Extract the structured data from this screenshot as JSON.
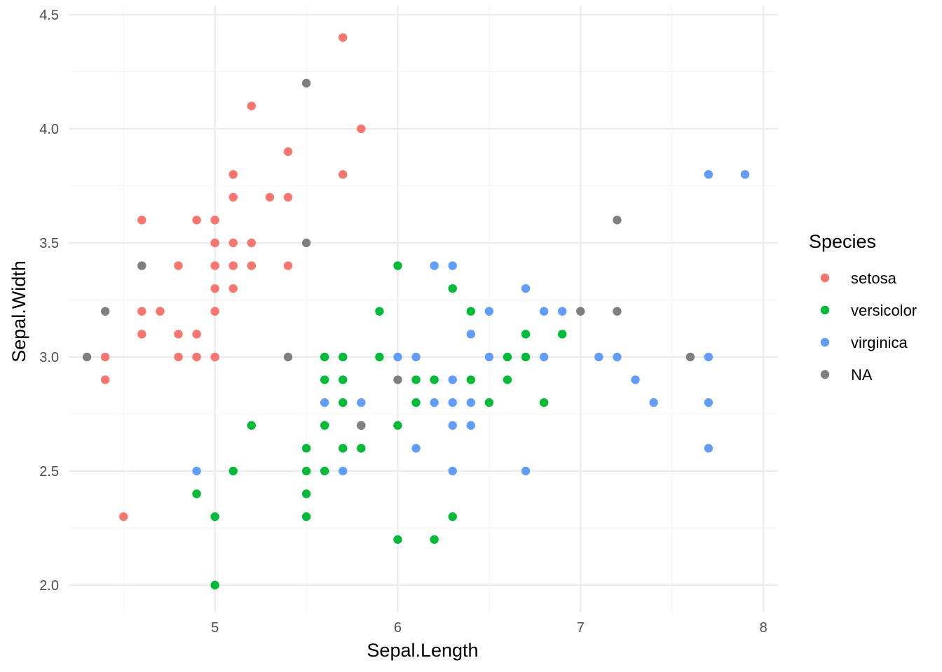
{
  "chart_data": {
    "type": "scatter",
    "xlabel": "Sepal.Length",
    "ylabel": "Sepal.Width",
    "xlim": [
      4.2,
      8.08
    ],
    "ylim": [
      1.88,
      4.54
    ],
    "x_ticks": [
      5,
      6,
      7,
      8
    ],
    "x_tick_labels": [
      "5",
      "6",
      "7",
      "8"
    ],
    "x_minor_ticks": [
      4.5,
      5.5,
      6.5,
      7.5
    ],
    "y_ticks": [
      2.0,
      2.5,
      3.0,
      3.5,
      4.0,
      4.5
    ],
    "y_tick_labels": [
      "2.0",
      "2.5",
      "3.0",
      "3.5",
      "4.0",
      "4.5"
    ],
    "y_minor_ticks": [
      2.25,
      2.75,
      3.25,
      3.75,
      4.25
    ],
    "grid": true,
    "legend": {
      "title": "Species",
      "position": "right"
    },
    "series": [
      {
        "name": "setosa",
        "color": "#F8766D",
        "points": [
          [
            5.7,
            4.4
          ],
          [
            5.2,
            4.1
          ],
          [
            5.8,
            4.0
          ],
          [
            5.4,
            3.9
          ],
          [
            5.1,
            3.8
          ],
          [
            5.7,
            3.8
          ],
          [
            5.1,
            3.7
          ],
          [
            5.3,
            3.7
          ],
          [
            5.4,
            3.7
          ],
          [
            4.6,
            3.6
          ],
          [
            4.9,
            3.6
          ],
          [
            5.0,
            3.6
          ],
          [
            5.0,
            3.5
          ],
          [
            5.1,
            3.5
          ],
          [
            5.2,
            3.5
          ],
          [
            4.8,
            3.4
          ],
          [
            5.0,
            3.4
          ],
          [
            5.1,
            3.4
          ],
          [
            5.2,
            3.4
          ],
          [
            5.4,
            3.4
          ],
          [
            5.0,
            3.3
          ],
          [
            5.1,
            3.3
          ],
          [
            4.6,
            3.2
          ],
          [
            4.7,
            3.2
          ],
          [
            5.0,
            3.2
          ],
          [
            4.6,
            3.1
          ],
          [
            4.8,
            3.1
          ],
          [
            4.9,
            3.1
          ],
          [
            4.4,
            3.0
          ],
          [
            4.8,
            3.0
          ],
          [
            4.9,
            3.0
          ],
          [
            5.0,
            3.0
          ],
          [
            4.4,
            2.9
          ],
          [
            4.5,
            2.3
          ]
        ]
      },
      {
        "name": "versicolor",
        "color": "#00BA38",
        "points": [
          [
            6.0,
            3.4
          ],
          [
            6.3,
            3.3
          ],
          [
            5.9,
            3.2
          ],
          [
            6.4,
            3.2
          ],
          [
            6.7,
            3.1
          ],
          [
            6.9,
            3.1
          ],
          [
            5.6,
            3.0
          ],
          [
            5.7,
            3.0
          ],
          [
            5.9,
            3.0
          ],
          [
            6.6,
            3.0
          ],
          [
            6.7,
            3.0
          ],
          [
            5.6,
            2.9
          ],
          [
            5.7,
            2.9
          ],
          [
            6.1,
            2.9
          ],
          [
            6.2,
            2.9
          ],
          [
            6.4,
            2.9
          ],
          [
            6.6,
            2.9
          ],
          [
            5.7,
            2.8
          ],
          [
            6.1,
            2.8
          ],
          [
            6.5,
            2.8
          ],
          [
            6.8,
            2.8
          ],
          [
            5.2,
            2.7
          ],
          [
            5.6,
            2.7
          ],
          [
            5.8,
            2.7
          ],
          [
            6.0,
            2.7
          ],
          [
            5.5,
            2.6
          ],
          [
            5.7,
            2.6
          ],
          [
            5.8,
            2.6
          ],
          [
            5.1,
            2.5
          ],
          [
            5.5,
            2.5
          ],
          [
            5.6,
            2.5
          ],
          [
            4.9,
            2.4
          ],
          [
            5.5,
            2.4
          ],
          [
            5.0,
            2.3
          ],
          [
            5.5,
            2.3
          ],
          [
            6.3,
            2.3
          ],
          [
            6.0,
            2.2
          ],
          [
            6.2,
            2.2
          ],
          [
            5.0,
            2.0
          ]
        ]
      },
      {
        "name": "virginica",
        "color": "#619CFF",
        "points": [
          [
            7.7,
            3.8
          ],
          [
            7.9,
            3.8
          ],
          [
            6.2,
            3.4
          ],
          [
            6.3,
            3.4
          ],
          [
            6.7,
            3.3
          ],
          [
            6.5,
            3.2
          ],
          [
            6.8,
            3.2
          ],
          [
            6.9,
            3.2
          ],
          [
            6.4,
            3.1
          ],
          [
            6.0,
            3.0
          ],
          [
            6.1,
            3.0
          ],
          [
            6.5,
            3.0
          ],
          [
            6.8,
            3.0
          ],
          [
            7.1,
            3.0
          ],
          [
            7.2,
            3.0
          ],
          [
            7.7,
            3.0
          ],
          [
            6.3,
            2.9
          ],
          [
            7.3,
            2.9
          ],
          [
            5.6,
            2.8
          ],
          [
            5.8,
            2.8
          ],
          [
            6.2,
            2.8
          ],
          [
            6.3,
            2.8
          ],
          [
            6.4,
            2.8
          ],
          [
            7.4,
            2.8
          ],
          [
            7.7,
            2.8
          ],
          [
            6.3,
            2.7
          ],
          [
            6.4,
            2.7
          ],
          [
            6.1,
            2.6
          ],
          [
            7.7,
            2.6
          ],
          [
            4.9,
            2.5
          ],
          [
            5.7,
            2.5
          ],
          [
            6.3,
            2.5
          ],
          [
            6.7,
            2.5
          ]
        ]
      },
      {
        "name": "NA",
        "color": "#7F7F7F",
        "points": [
          [
            5.5,
            4.2
          ],
          [
            7.2,
            3.6
          ],
          [
            5.5,
            3.5
          ],
          [
            4.6,
            3.4
          ],
          [
            4.4,
            3.2
          ],
          [
            7.0,
            3.2
          ],
          [
            7.2,
            3.2
          ],
          [
            4.3,
            3.0
          ],
          [
            5.4,
            3.0
          ],
          [
            7.6,
            3.0
          ],
          [
            6.0,
            2.9
          ],
          [
            5.8,
            2.7
          ]
        ]
      }
    ]
  }
}
